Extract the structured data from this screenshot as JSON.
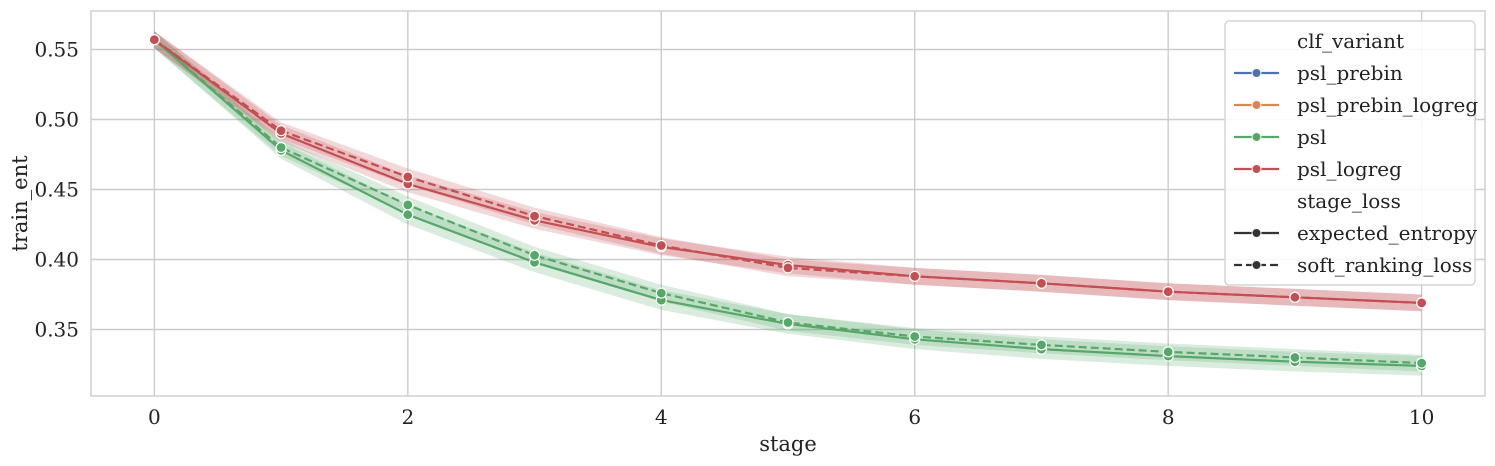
{
  "chart_data": {
    "type": "line",
    "xlabel": "stage",
    "ylabel": "train_ent",
    "xlim": [
      -0.5,
      10.5
    ],
    "ylim": [
      0.3025,
      0.5775
    ],
    "x_ticks": [
      0,
      2,
      4,
      6,
      8,
      10
    ],
    "y_ticks": [
      0.35,
      0.4,
      0.45,
      0.5,
      0.55
    ],
    "y_tick_labels": [
      "0.35",
      "0.40",
      "0.45",
      "0.50",
      "0.55"
    ],
    "grid": true,
    "legend_position": "top-right",
    "legend": {
      "hue_title": "clf_variant",
      "hue_entries": [
        {
          "label": "psl_prebin",
          "color": "#4c72b0"
        },
        {
          "label": "psl_prebin_logreg",
          "color": "#dd8452"
        },
        {
          "label": "psl",
          "color": "#55a868"
        },
        {
          "label": "psl_logreg",
          "color": "#c44e52"
        }
      ],
      "style_title": "stage_loss",
      "style_entries": [
        {
          "label": "expected_entropy",
          "dash": "solid"
        },
        {
          "label": "soft_ranking_loss",
          "dash": "dashed"
        }
      ]
    },
    "x": [
      0,
      1,
      2,
      3,
      4,
      5,
      6,
      7,
      8,
      9,
      10
    ],
    "series": [
      {
        "clf_variant": "psl",
        "stage_loss": "expected_entropy",
        "color": "#55a868",
        "dash": "solid",
        "values": [
          0.557,
          0.478,
          0.432,
          0.398,
          0.371,
          0.354,
          0.343,
          0.336,
          0.331,
          0.327,
          0.324
        ],
        "ci": [
          0.006,
          0.006,
          0.007,
          0.007,
          0.007,
          0.007,
          0.007,
          0.007,
          0.007,
          0.007,
          0.007
        ]
      },
      {
        "clf_variant": "psl",
        "stage_loss": "soft_ranking_loss",
        "color": "#55a868",
        "dash": "dashed",
        "values": [
          0.557,
          0.48,
          0.439,
          0.403,
          0.376,
          0.355,
          0.345,
          0.339,
          0.334,
          0.33,
          0.326
        ],
        "ci": [
          0.006,
          0.006,
          0.006,
          0.006,
          0.006,
          0.006,
          0.006,
          0.006,
          0.006,
          0.006,
          0.006
        ]
      },
      {
        "clf_variant": "psl_logreg",
        "stage_loss": "expected_entropy",
        "color": "#c44e52",
        "dash": "solid",
        "values": [
          0.557,
          0.49,
          0.454,
          0.428,
          0.409,
          0.396,
          0.388,
          0.383,
          0.377,
          0.373,
          0.369
        ],
        "ci": [
          0.006,
          0.006,
          0.006,
          0.006,
          0.006,
          0.006,
          0.006,
          0.006,
          0.006,
          0.006,
          0.006
        ]
      },
      {
        "clf_variant": "psl_logreg",
        "stage_loss": "soft_ranking_loss",
        "color": "#c44e52",
        "dash": "dashed",
        "values": [
          0.557,
          0.492,
          0.459,
          0.431,
          0.41,
          0.394,
          0.388,
          0.383,
          0.377,
          0.373,
          0.369
        ],
        "ci": [
          0.006,
          0.006,
          0.006,
          0.006,
          0.006,
          0.006,
          0.006,
          0.006,
          0.006,
          0.006,
          0.006
        ]
      }
    ]
  }
}
